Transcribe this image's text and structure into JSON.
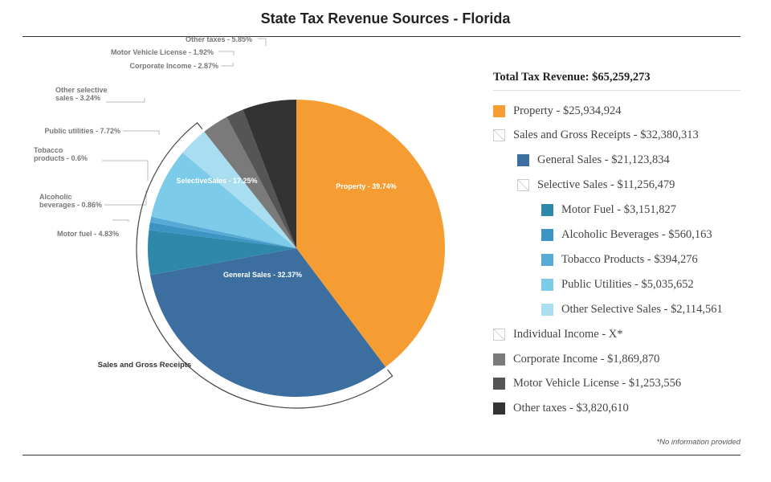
{
  "title": "State Tax Revenue Sources - Florida",
  "footnote": "*No information provided",
  "legend": {
    "total": "Total Tax Revenue: $65,259,273",
    "items": [
      {
        "label": "Property - $25,934,924",
        "color": "#f59d33",
        "level": 0
      },
      {
        "label": "Sales and Gross Receipts - $32,380,313",
        "color": "none",
        "level": 0
      },
      {
        "label": "General Sales - $21,123,834",
        "color": "#3c6fa0",
        "level": 1
      },
      {
        "label": "Selective Sales - $11,256,479",
        "color": "none",
        "level": 1
      },
      {
        "label": "Motor Fuel - $3,151,827",
        "color": "#2f88aa",
        "level": 2
      },
      {
        "label": "Alcoholic Beverages - $560,163",
        "color": "#3d95c4",
        "level": 2
      },
      {
        "label": "Tobacco Products - $394,276",
        "color": "#58aad6",
        "level": 2
      },
      {
        "label": "Public Utilities - $5,035,652",
        "color": "#7ccbe8",
        "level": 2
      },
      {
        "label": "Other Selective Sales - $2,114,561",
        "color": "#a8def0",
        "level": 2
      },
      {
        "label": "Individual Income - X*",
        "color": "none",
        "level": 0
      },
      {
        "label": "Corporate Income - $1,869,870",
        "color": "#7a7a7a",
        "level": 0
      },
      {
        "label": "Motor Vehicle License - $1,253,556",
        "color": "#555555",
        "level": 0
      },
      {
        "label": "Other taxes - $3,820,610",
        "color": "#333333",
        "level": 0
      }
    ]
  },
  "chart_data": {
    "type": "pie",
    "slices": [
      {
        "name": "Property",
        "percent": 39.74,
        "label": "Property - 39.74%",
        "color": "#f59d33",
        "inside": true
      },
      {
        "name": "General Sales",
        "percent": 32.37,
        "label": "General Sales - 32.37%",
        "color": "#3c6fa0",
        "inside": true
      },
      {
        "name": "Motor fuel",
        "percent": 4.83,
        "label": "Motor fuel - 4.83%",
        "color": "#2f88aa",
        "inside": false
      },
      {
        "name": "Alcoholic beverages",
        "percent": 0.86,
        "label": "Alcoholic beverages - 0.86%",
        "color": "#3d95c4",
        "inside": false
      },
      {
        "name": "Tobacco products",
        "percent": 0.6,
        "label": "Tobacco products - 0.6%",
        "color": "#58aad6",
        "inside": false
      },
      {
        "name": "Public utilities",
        "percent": 7.72,
        "label": "Public utilities - 7.72%",
        "color": "#7ccbe8",
        "inside": false
      },
      {
        "name": "Other selective sales",
        "percent": 3.24,
        "label": "Other selective sales - 3.24%",
        "color": "#a8def0",
        "inside": false
      },
      {
        "name": "Corporate Income",
        "percent": 2.87,
        "label": "Corporate Income - 2.87%",
        "color": "#7a7a7a",
        "inside": false
      },
      {
        "name": "Motor Vehicle License",
        "percent": 1.92,
        "label": "Motor Vehicle License - 1.92%",
        "color": "#555555",
        "inside": false
      },
      {
        "name": "Other taxes",
        "percent": 5.85,
        "label": "Other taxes - 5.85%",
        "color": "#333333",
        "inside": false
      }
    ],
    "group_labels": {
      "selective_sales": "SelectiveSales - 17.25%",
      "sales_and_gross_receipts": "Sales and Gross Receipts"
    }
  }
}
